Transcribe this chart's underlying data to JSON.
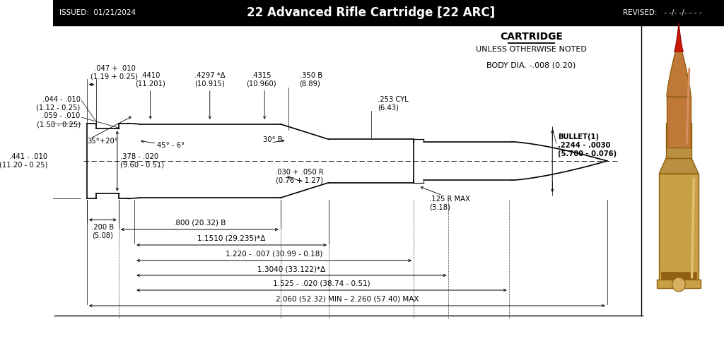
{
  "title": "22 Advanced Rifle Cartridge [22 ARC]",
  "issued": "ISSUED:  01/21/2024",
  "revised": "REVISED:   - -/- -/- - - -",
  "cartridge_note_title": "CARTRIDGE",
  "cartridge_note_1": "UNLESS OTHERWISE NOTED",
  "cartridge_note_2": "BODY DIA. -.008 (0.20)",
  "bg_color": "#ffffff",
  "line_color": "#000000",
  "annotations": {
    "dim_047": ".047 + .010\n(1.19 + 0.25)",
    "dim_044": ".044 - .010\n(1.12 - 0.25)",
    "dim_059": ".059 - .010\n(1.50 - 0.25)",
    "dim_35deg": "35°+20°",
    "dim_441": ".441 - .010\n(11.20 - 0.25)",
    "dim_378": ".378 - .020\n(9.60 - 0.51)",
    "dim_200": ".200 B\n(5.08)",
    "dim_4410": ".4410\n(11.201)",
    "dim_45deg": "45° - 6°",
    "dim_4297": ".4297 *Δ\n(10.915)",
    "dim_4315": ".4315\n(10.960)",
    "dim_030": ".030 + .050 R\n(0.76 + 1.27)",
    "dim_30deg": "30° B",
    "dim_350": ".350 B\n(8.89)",
    "dim_253": ".253 CYL\n(6.43)",
    "dim_125": ".125 R MAX\n(3.18)",
    "dim_bullet": "BULLET(1)\n.2244 - .0030\n(5.700 - 0.076)",
    "dim_800": ".800 (20.32) B",
    "dim_1151": "1.1510 (29.235)*Δ",
    "dim_1220": "1.220 - .007 (30.99 - 0.18)",
    "dim_1304": "1.3040 (33.122)*Δ",
    "dim_1525": "1.525 - .020 (38.74 - 0.51)",
    "dim_2060": "2.060 (52.32) MIN – 2.260 (57.40) MAX"
  }
}
